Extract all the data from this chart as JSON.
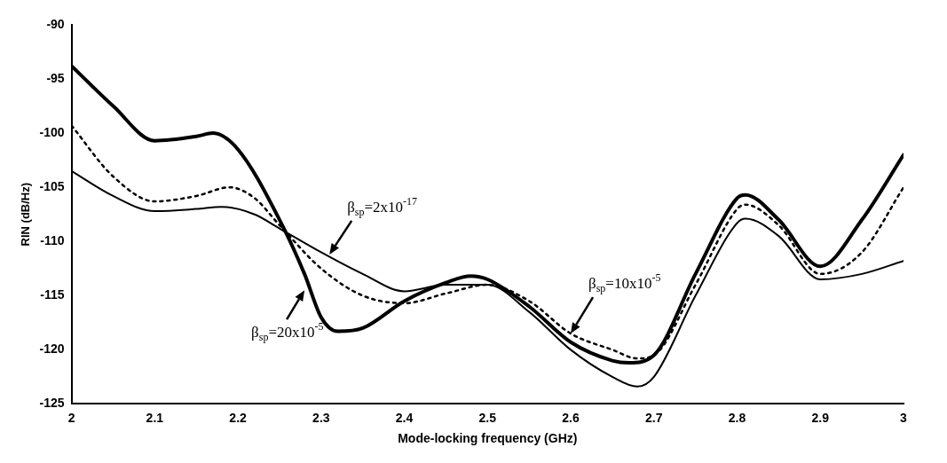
{
  "chart_data": {
    "type": "line",
    "xlabel": "Mode-locking frequency (GHz)",
    "ylabel": "RIN (dB/Hz)",
    "xlim": [
      2,
      3
    ],
    "xticks": [
      2,
      2.1,
      2.2,
      2.3,
      2.4,
      2.5,
      2.6,
      2.7,
      2.8,
      2.9,
      3
    ],
    "ylim": [
      -125,
      -90
    ],
    "yticks": [
      -125,
      -120,
      -115,
      -110,
      -105,
      -100,
      -95,
      -90
    ],
    "grid": false,
    "legend": false,
    "marker": "none",
    "series": [
      {
        "color": "#000000",
        "line_style": "solid",
        "x": [
          2,
          2.05,
          2.1,
          2.15,
          2.17,
          2.2,
          2.25,
          2.28,
          2.3,
          2.32,
          2.35,
          2.4,
          2.45,
          2.48,
          2.5,
          2.55,
          2.6,
          2.65,
          2.67,
          2.7,
          2.75,
          2.8,
          2.81,
          2.85,
          2.9,
          2.95,
          3
        ],
        "values": [
          -93.8,
          -97.5,
          -100.7,
          -100.3,
          -100,
          -101.5,
          -108,
          -113,
          -117,
          -118.3,
          -118,
          -115.5,
          -113.8,
          -113.2,
          -113.5,
          -116,
          -119.3,
          -121,
          -121.2,
          -120.5,
          -113,
          -106,
          -105.7,
          -108,
          -112.3,
          -108,
          -102
        ]
      },
      {
        "color": "#000000",
        "line_style": "dotted",
        "x": [
          2,
          2.05,
          2.1,
          2.15,
          2.19,
          2.22,
          2.25,
          2.3,
          2.35,
          2.4,
          2.45,
          2.5,
          2.55,
          2.6,
          2.65,
          2.68,
          2.7,
          2.75,
          2.8,
          2.81,
          2.85,
          2.9,
          2.95,
          3
        ],
        "values": [
          -99.3,
          -104,
          -106.3,
          -105.8,
          -105,
          -106,
          -108.5,
          -112.5,
          -115,
          -115.7,
          -114.8,
          -114,
          -115.5,
          -118.5,
          -120,
          -120.8,
          -120.5,
          -114,
          -107,
          -106.6,
          -108.5,
          -113,
          -111,
          -105
        ]
      },
      {
        "color": "#000000",
        "line_style": "solid",
        "x": [
          2,
          2.05,
          2.1,
          2.15,
          2.18,
          2.22,
          2.25,
          2.3,
          2.35,
          2.4,
          2.45,
          2.5,
          2.55,
          2.6,
          2.65,
          2.68,
          2.7,
          2.75,
          2.8,
          2.81,
          2.85,
          2.9,
          2.95,
          3
        ],
        "values": [
          -103.5,
          -105.8,
          -107.2,
          -107,
          -106.8,
          -107.5,
          -108.8,
          -111,
          -113,
          -114.6,
          -114,
          -114,
          -116.5,
          -120,
          -122.5,
          -123.4,
          -122.5,
          -115,
          -108.3,
          -107.9,
          -109.5,
          -113.5,
          -113,
          -111.8
        ]
      }
    ],
    "annotations": [
      {
        "text": "β$_{sp}$=2x10$^{-17}$",
        "x": 2.31,
        "y": -111.2
      },
      {
        "text": "β$_{sp}$=20x10$^{-5}$",
        "x": 2.28,
        "y": -114.5
      },
      {
        "text": "β$_{sp}$=10x10$^{-5}$",
        "x": 2.6,
        "y": -118.5
      }
    ]
  }
}
